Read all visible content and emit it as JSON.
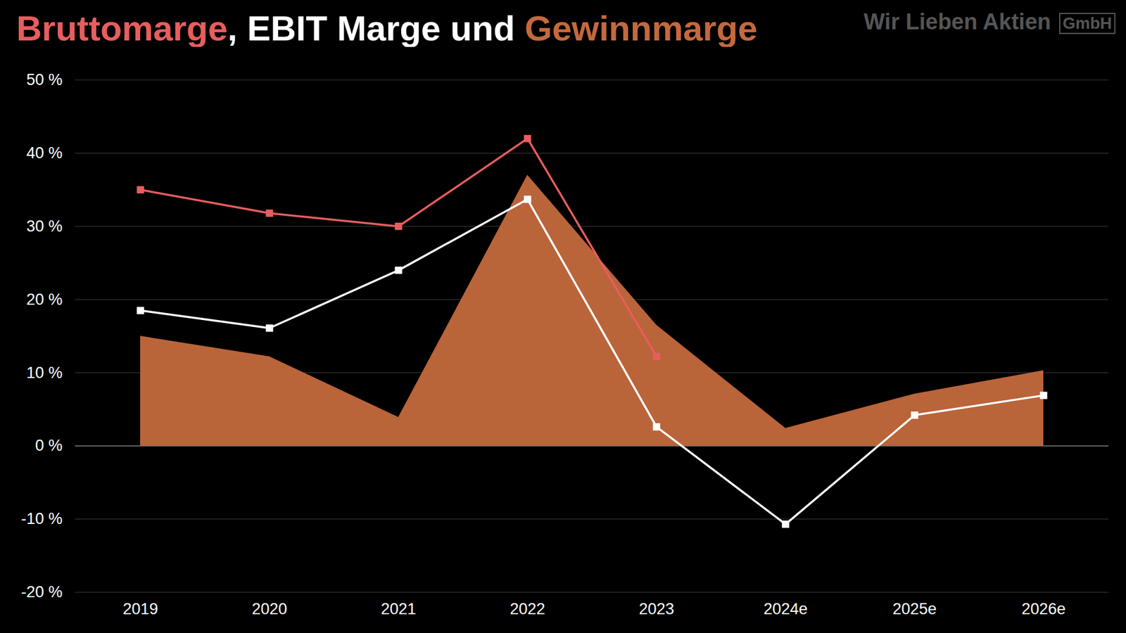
{
  "chart_data": {
    "type": "line",
    "title": "Bruttomarge, EBIT Marge und Gewinnmarge",
    "annotations": [
      "Wir Lieben Aktien",
      "GmbH"
    ],
    "categories": [
      "2019",
      "2020",
      "2021",
      "2022",
      "2023",
      "2024e",
      "2025e",
      "2026e"
    ],
    "series": [
      {
        "name": "Gewinnmarge",
        "type": "area",
        "color": "#c4693d",
        "values": [
          15,
          12.2,
          3.9,
          37,
          16.5,
          2.4,
          7.1,
          10.3
        ]
      },
      {
        "name": "Bruttomarge",
        "type": "line",
        "marker": "square",
        "color": "#e85d5d",
        "values": [
          35,
          31.8,
          30,
          42,
          12.2,
          null,
          null,
          null
        ]
      },
      {
        "name": "EBIT Marge",
        "type": "line",
        "marker": "square",
        "color": "#ffffff",
        "values": [
          18.5,
          16.1,
          24,
          33.7,
          2.6,
          -10.7,
          4.2,
          6.9
        ]
      }
    ],
    "ylim": [
      -20,
      50
    ],
    "yticks": [
      {
        "value": -20,
        "label": "-20 %"
      },
      {
        "value": -10,
        "label": "-10 %"
      },
      {
        "value": 0,
        "label": "0 %"
      },
      {
        "value": 10,
        "label": "10 %"
      },
      {
        "value": 20,
        "label": "20 %"
      },
      {
        "value": 30,
        "label": "30 %"
      },
      {
        "value": 40,
        "label": "40 %"
      },
      {
        "value": 50,
        "label": "50 %"
      }
    ],
    "grid": true
  }
}
